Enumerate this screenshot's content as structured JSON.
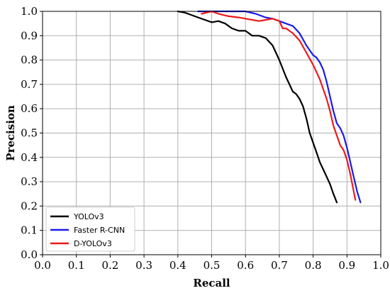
{
  "chart_data": {
    "type": "line",
    "title": "",
    "xlabel": "Recall",
    "ylabel": "Precision",
    "xlim": [
      0.0,
      1.0
    ],
    "ylim": [
      0.0,
      1.0
    ],
    "xticks": [
      "0.0",
      "0.1",
      "0.2",
      "0.3",
      "0.4",
      "0.5",
      "0.6",
      "0.7",
      "0.8",
      "0.9",
      "1.0"
    ],
    "yticks": [
      "0.0",
      "0.1",
      "0.2",
      "0.3",
      "0.4",
      "0.5",
      "0.6",
      "0.7",
      "0.8",
      "0.9",
      "1.0"
    ],
    "grid": true,
    "legend_position": "bottom-left",
    "series": [
      {
        "name": "YOLOv3",
        "color": "#000000",
        "x": [
          0.4,
          0.42,
          0.44,
          0.46,
          0.48,
          0.5,
          0.52,
          0.54,
          0.56,
          0.58,
          0.6,
          0.62,
          0.64,
          0.66,
          0.68,
          0.7,
          0.72,
          0.74,
          0.75,
          0.76,
          0.77,
          0.78,
          0.79,
          0.8,
          0.81,
          0.82,
          0.83,
          0.84,
          0.85,
          0.86,
          0.87
        ],
        "y": [
          1.0,
          0.995,
          0.985,
          0.975,
          0.965,
          0.955,
          0.96,
          0.95,
          0.93,
          0.92,
          0.92,
          0.9,
          0.9,
          0.89,
          0.86,
          0.8,
          0.73,
          0.67,
          0.66,
          0.64,
          0.61,
          0.56,
          0.5,
          0.46,
          0.42,
          0.38,
          0.35,
          0.32,
          0.29,
          0.25,
          0.215
        ]
      },
      {
        "name": "Faster R-CNN",
        "color": "#1a1aee",
        "x": [
          0.46,
          0.5,
          0.55,
          0.6,
          0.63,
          0.66,
          0.68,
          0.7,
          0.72,
          0.74,
          0.76,
          0.78,
          0.79,
          0.8,
          0.81,
          0.82,
          0.83,
          0.84,
          0.85,
          0.86,
          0.87,
          0.88,
          0.89,
          0.9,
          0.91,
          0.92,
          0.93,
          0.94
        ],
        "y": [
          1.0,
          1.0,
          1.0,
          1.0,
          0.99,
          0.975,
          0.97,
          0.96,
          0.95,
          0.94,
          0.91,
          0.86,
          0.84,
          0.82,
          0.81,
          0.79,
          0.76,
          0.71,
          0.65,
          0.59,
          0.54,
          0.52,
          0.49,
          0.44,
          0.38,
          0.32,
          0.26,
          0.215
        ]
      },
      {
        "name": "D-YOLOv3",
        "color": "#ee1a1a",
        "x": [
          0.47,
          0.5,
          0.52,
          0.55,
          0.58,
          0.6,
          0.62,
          0.64,
          0.66,
          0.68,
          0.7,
          0.71,
          0.72,
          0.74,
          0.76,
          0.78,
          0.8,
          0.81,
          0.82,
          0.83,
          0.84,
          0.85,
          0.86,
          0.87,
          0.88,
          0.89,
          0.9,
          0.91,
          0.92,
          0.925
        ],
        "y": [
          0.99,
          1.0,
          0.99,
          0.98,
          0.975,
          0.97,
          0.965,
          0.96,
          0.965,
          0.97,
          0.96,
          0.93,
          0.93,
          0.91,
          0.88,
          0.83,
          0.78,
          0.75,
          0.72,
          0.68,
          0.64,
          0.59,
          0.53,
          0.49,
          0.45,
          0.43,
          0.39,
          0.33,
          0.26,
          0.225
        ]
      }
    ]
  }
}
